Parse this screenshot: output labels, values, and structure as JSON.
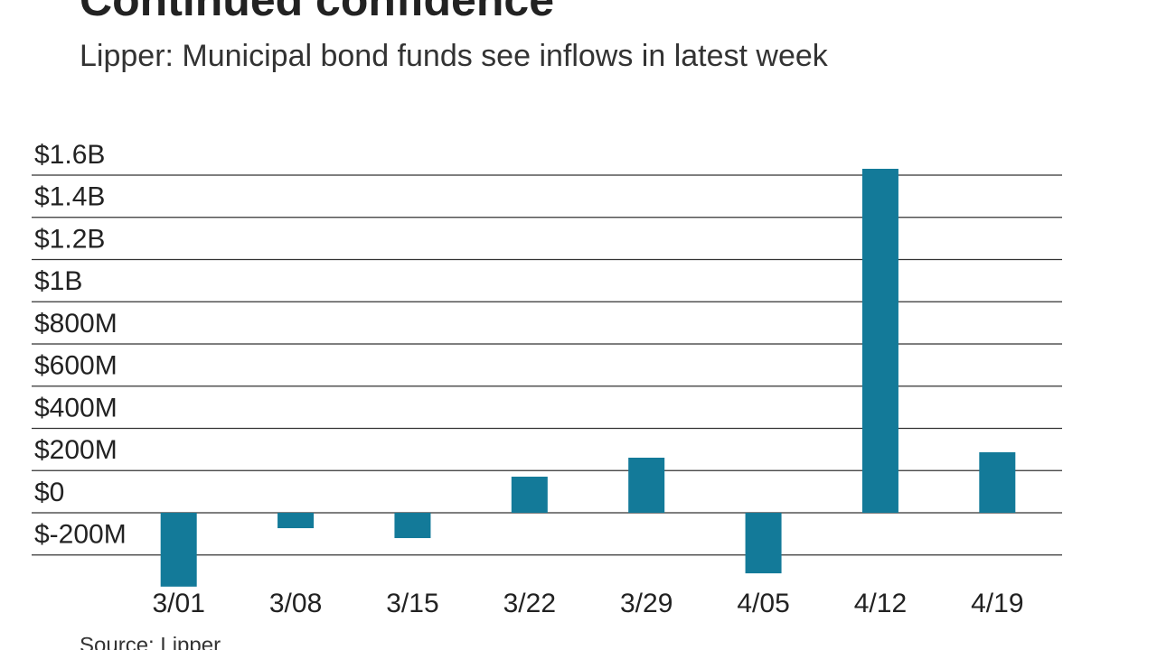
{
  "chart_data": {
    "type": "bar",
    "title": "Continued confidence",
    "subtitle": "Lipper: Municipal bond funds see inflows in latest week",
    "source": "Source: Lipper",
    "categories": [
      "3/01",
      "3/08",
      "3/15",
      "3/22",
      "3/29",
      "4/05",
      "4/12",
      "4/19"
    ],
    "values": [
      -350000000,
      -73000000,
      -120000000,
      171000000,
      261000000,
      -287000000,
      1630000000,
      287000000
    ],
    "color": "#137a99",
    "ylim": [
      -350000000,
      1650000000
    ],
    "yticks": [
      {
        "value": -200000000,
        "label": "$-200M"
      },
      {
        "value": 0,
        "label": "$0"
      },
      {
        "value": 200000000,
        "label": "$200M"
      },
      {
        "value": 400000000,
        "label": "$400M"
      },
      {
        "value": 600000000,
        "label": "$600M"
      },
      {
        "value": 800000000,
        "label": "$800M"
      },
      {
        "value": 1000000000,
        "label": "$1B"
      },
      {
        "value": 1200000000,
        "label": "$1.2B"
      },
      {
        "value": 1400000000,
        "label": "$1.4B"
      },
      {
        "value": 1600000000,
        "label": "$1.6B"
      }
    ],
    "grid": true
  }
}
